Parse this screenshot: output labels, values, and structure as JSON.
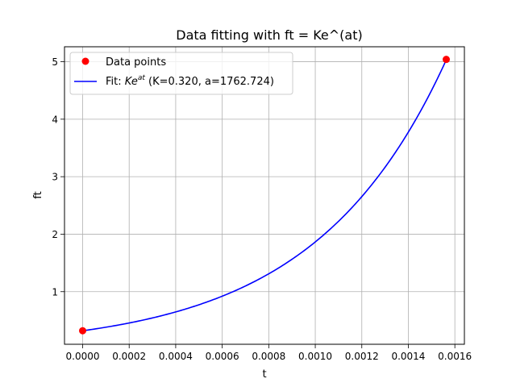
{
  "chart_data": {
    "type": "scatter",
    "title": "Data fitting with ft = Ke^(at)",
    "xlabel": "t",
    "ylabel": "ft",
    "xlim": [
      -7.8e-05,
      0.001641
    ],
    "ylim": [
      0.085,
      5.26
    ],
    "x_ticks": [
      0.0,
      0.0002,
      0.0004,
      0.0006,
      0.0008,
      0.001,
      0.0012,
      0.0014,
      0.0016
    ],
    "x_tick_labels": [
      "0.0000",
      "0.0002",
      "0.0004",
      "0.0006",
      "0.0008",
      "0.0010",
      "0.0012",
      "0.0014",
      "0.0016"
    ],
    "y_ticks": [
      1,
      2,
      3,
      4,
      5
    ],
    "y_tick_labels": [
      "1",
      "2",
      "3",
      "4",
      "5"
    ],
    "grid": true,
    "legend_placement": "upper-left",
    "series": [
      {
        "name": "Data points",
        "kind": "scatter",
        "color": "#ff0000",
        "x": [
          0.0,
          0.001563
        ],
        "y": [
          0.32,
          5.04
        ]
      },
      {
        "name_prefix": "Fit: ",
        "name_math": "Ke",
        "name_sup": "at",
        "name_suffix": " (K=0.320, a=1762.724)",
        "kind": "line",
        "color": "#0000ff",
        "model": "K*exp(a*t)",
        "K": 0.32,
        "a": 1762.724,
        "x_range": [
          0.0,
          0.001563
        ]
      }
    ]
  }
}
